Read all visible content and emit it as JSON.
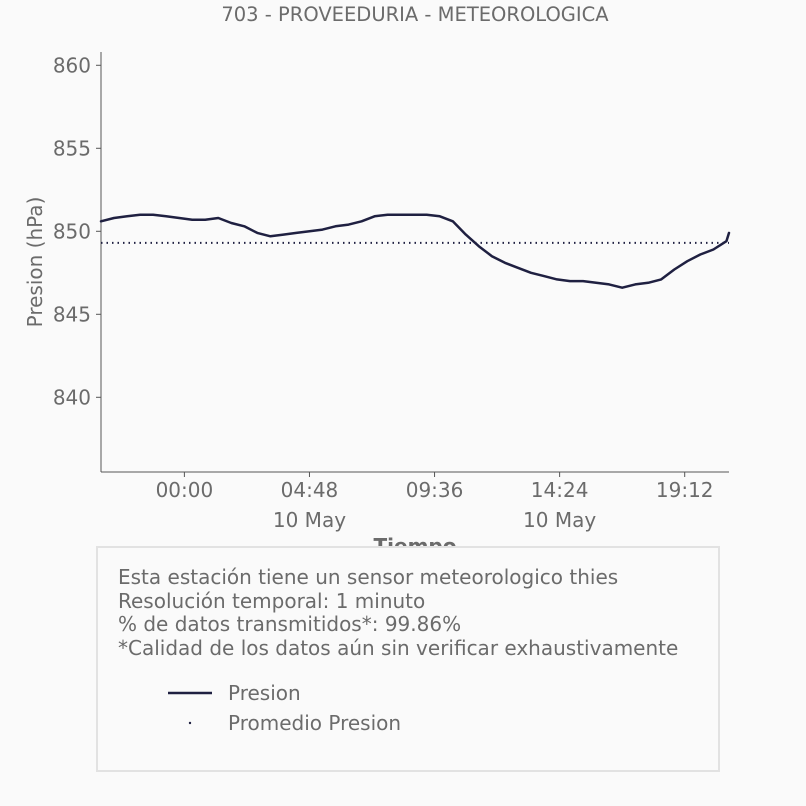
{
  "colors": {
    "line": "#1f2041",
    "text": "#6b6b6b",
    "axis": "#555555",
    "background": "#fafafa",
    "box_border": "#e2e2e2"
  },
  "chart_data": {
    "type": "line",
    "title": "703 - PROVEEDURIA - METEOROLOGICA",
    "xlabel": "Tiempo",
    "ylabel": "Presion (hPa)",
    "ylim": [
      835.5,
      860.8
    ],
    "xlim_hours_from_start": [
      0,
      24.1
    ],
    "x_ticks": [
      {
        "label": "00:00",
        "sublabel": ""
      },
      {
        "label": "04:48",
        "sublabel": "10 May"
      },
      {
        "label": "09:36",
        "sublabel": ""
      },
      {
        "label": "14:24",
        "sublabel": "10 May"
      },
      {
        "label": "19:12",
        "sublabel": ""
      }
    ],
    "x_tick_hours": [
      3.2,
      8.0,
      12.8,
      17.6,
      22.4
    ],
    "y_ticks": [
      840,
      845,
      850,
      855,
      860
    ],
    "grid": false,
    "series": [
      {
        "name": "Presion",
        "style": "solid",
        "x": [
          0.0,
          0.5,
          1.0,
          1.5,
          2.0,
          2.5,
          3.0,
          3.5,
          4.0,
          4.5,
          5.0,
          5.5,
          6.0,
          6.5,
          7.0,
          7.5,
          8.0,
          8.5,
          9.0,
          9.5,
          10.0,
          10.5,
          11.0,
          11.5,
          12.0,
          12.5,
          13.0,
          13.5,
          14.0,
          14.5,
          15.0,
          15.5,
          16.0,
          16.5,
          17.0,
          17.5,
          18.0,
          18.5,
          19.0,
          19.5,
          20.0,
          20.5,
          21.0,
          21.5,
          22.0,
          22.5,
          23.0,
          23.5,
          24.0,
          24.1
        ],
        "y": [
          850.6,
          850.8,
          850.9,
          851.0,
          851.0,
          850.9,
          850.8,
          850.7,
          850.7,
          850.8,
          850.5,
          850.3,
          849.9,
          849.7,
          849.8,
          849.9,
          850.0,
          850.1,
          850.3,
          850.4,
          850.6,
          850.9,
          851.0,
          851.0,
          851.0,
          851.0,
          850.9,
          850.6,
          849.8,
          849.1,
          848.5,
          848.1,
          847.8,
          847.5,
          847.3,
          847.1,
          847.0,
          847.0,
          846.9,
          846.8,
          846.6,
          846.8,
          846.9,
          847.1,
          847.7,
          848.2,
          848.6,
          848.9,
          849.4,
          849.9
        ]
      },
      {
        "name": "Promedio Presion",
        "style": "dotted",
        "x": [
          0.0,
          24.1
        ],
        "y": [
          849.3,
          849.3
        ]
      }
    ],
    "legend": [
      "Presion",
      "Promedio Presion"
    ],
    "legend_placement": "bottom"
  },
  "info": {
    "line1": "Esta estación tiene un sensor meteorologico thies",
    "line2": "Resolución temporal: 1 minuto",
    "line3": "% de datos transmitidos*: 99.86%",
    "line4": "*Calidad de los datos aún sin verificar exhaustivamente"
  }
}
